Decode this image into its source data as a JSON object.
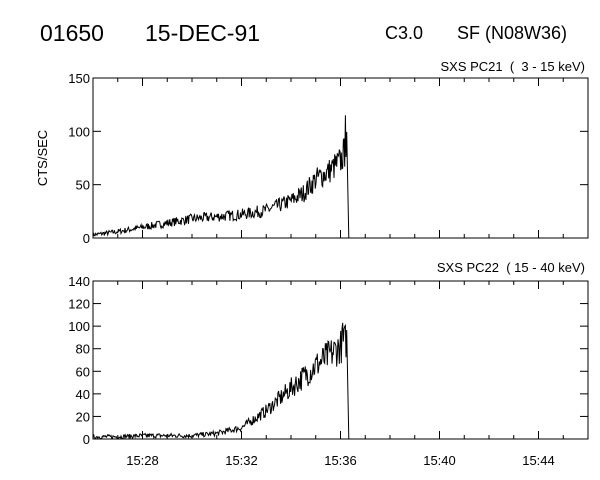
{
  "header": {
    "event_id": "01650",
    "date": "15-DEC-91",
    "goes_class": "C3.0",
    "flare": "SF (N08W36)"
  },
  "colors": {
    "ink": "#000000",
    "background": "#ffffff"
  },
  "chart_data": [
    {
      "type": "line",
      "title": "SXS PC21  (  3 - 15 keV)",
      "ylabel": "CTS/SEC",
      "xlabel": "",
      "xlim": [
        "15:26",
        "15:46"
      ],
      "ylim": [
        0,
        150
      ],
      "x_ticks": [
        "15:28",
        "15:32",
        "15:36",
        "15:40",
        "15:44"
      ],
      "y_ticks": [
        0,
        50,
        100,
        150
      ],
      "grid": false,
      "series": [
        {
          "x": [
            "15:26",
            "15:27",
            "15:28",
            "15:29",
            "15:30",
            "15:31",
            "15:32",
            "15:33",
            "15:34",
            "15:34:30",
            "15:35",
            "15:35:30",
            "15:36",
            "15:36:15",
            "15:36:20"
          ],
          "values": [
            3,
            6,
            10,
            14,
            18,
            20,
            22,
            26,
            35,
            42,
            55,
            62,
            72,
            85,
            0
          ],
          "peak": {
            "x": "15:36:12",
            "value": 115
          }
        }
      ]
    },
    {
      "type": "line",
      "title": "SXS PC22  ( 15 - 40 keV)",
      "ylabel": "",
      "xlabel": "",
      "xlim": [
        "15:26",
        "15:46"
      ],
      "ylim": [
        0,
        140
      ],
      "x_ticks": [
        "15:28",
        "15:32",
        "15:36",
        "15:40",
        "15:44"
      ],
      "y_ticks": [
        0,
        20,
        40,
        60,
        80,
        100,
        120,
        140
      ],
      "grid": false,
      "series": [
        {
          "x": [
            "15:26",
            "15:27",
            "15:28",
            "15:29",
            "15:30",
            "15:31",
            "15:32",
            "15:33",
            "15:34",
            "15:35",
            "15:36",
            "15:36:15",
            "15:36:20"
          ],
          "values": [
            2,
            2,
            3,
            3,
            3,
            5,
            10,
            25,
            45,
            65,
            82,
            88,
            0
          ],
          "peak": {
            "x": "15:36:05",
            "value": 103
          }
        }
      ]
    }
  ]
}
